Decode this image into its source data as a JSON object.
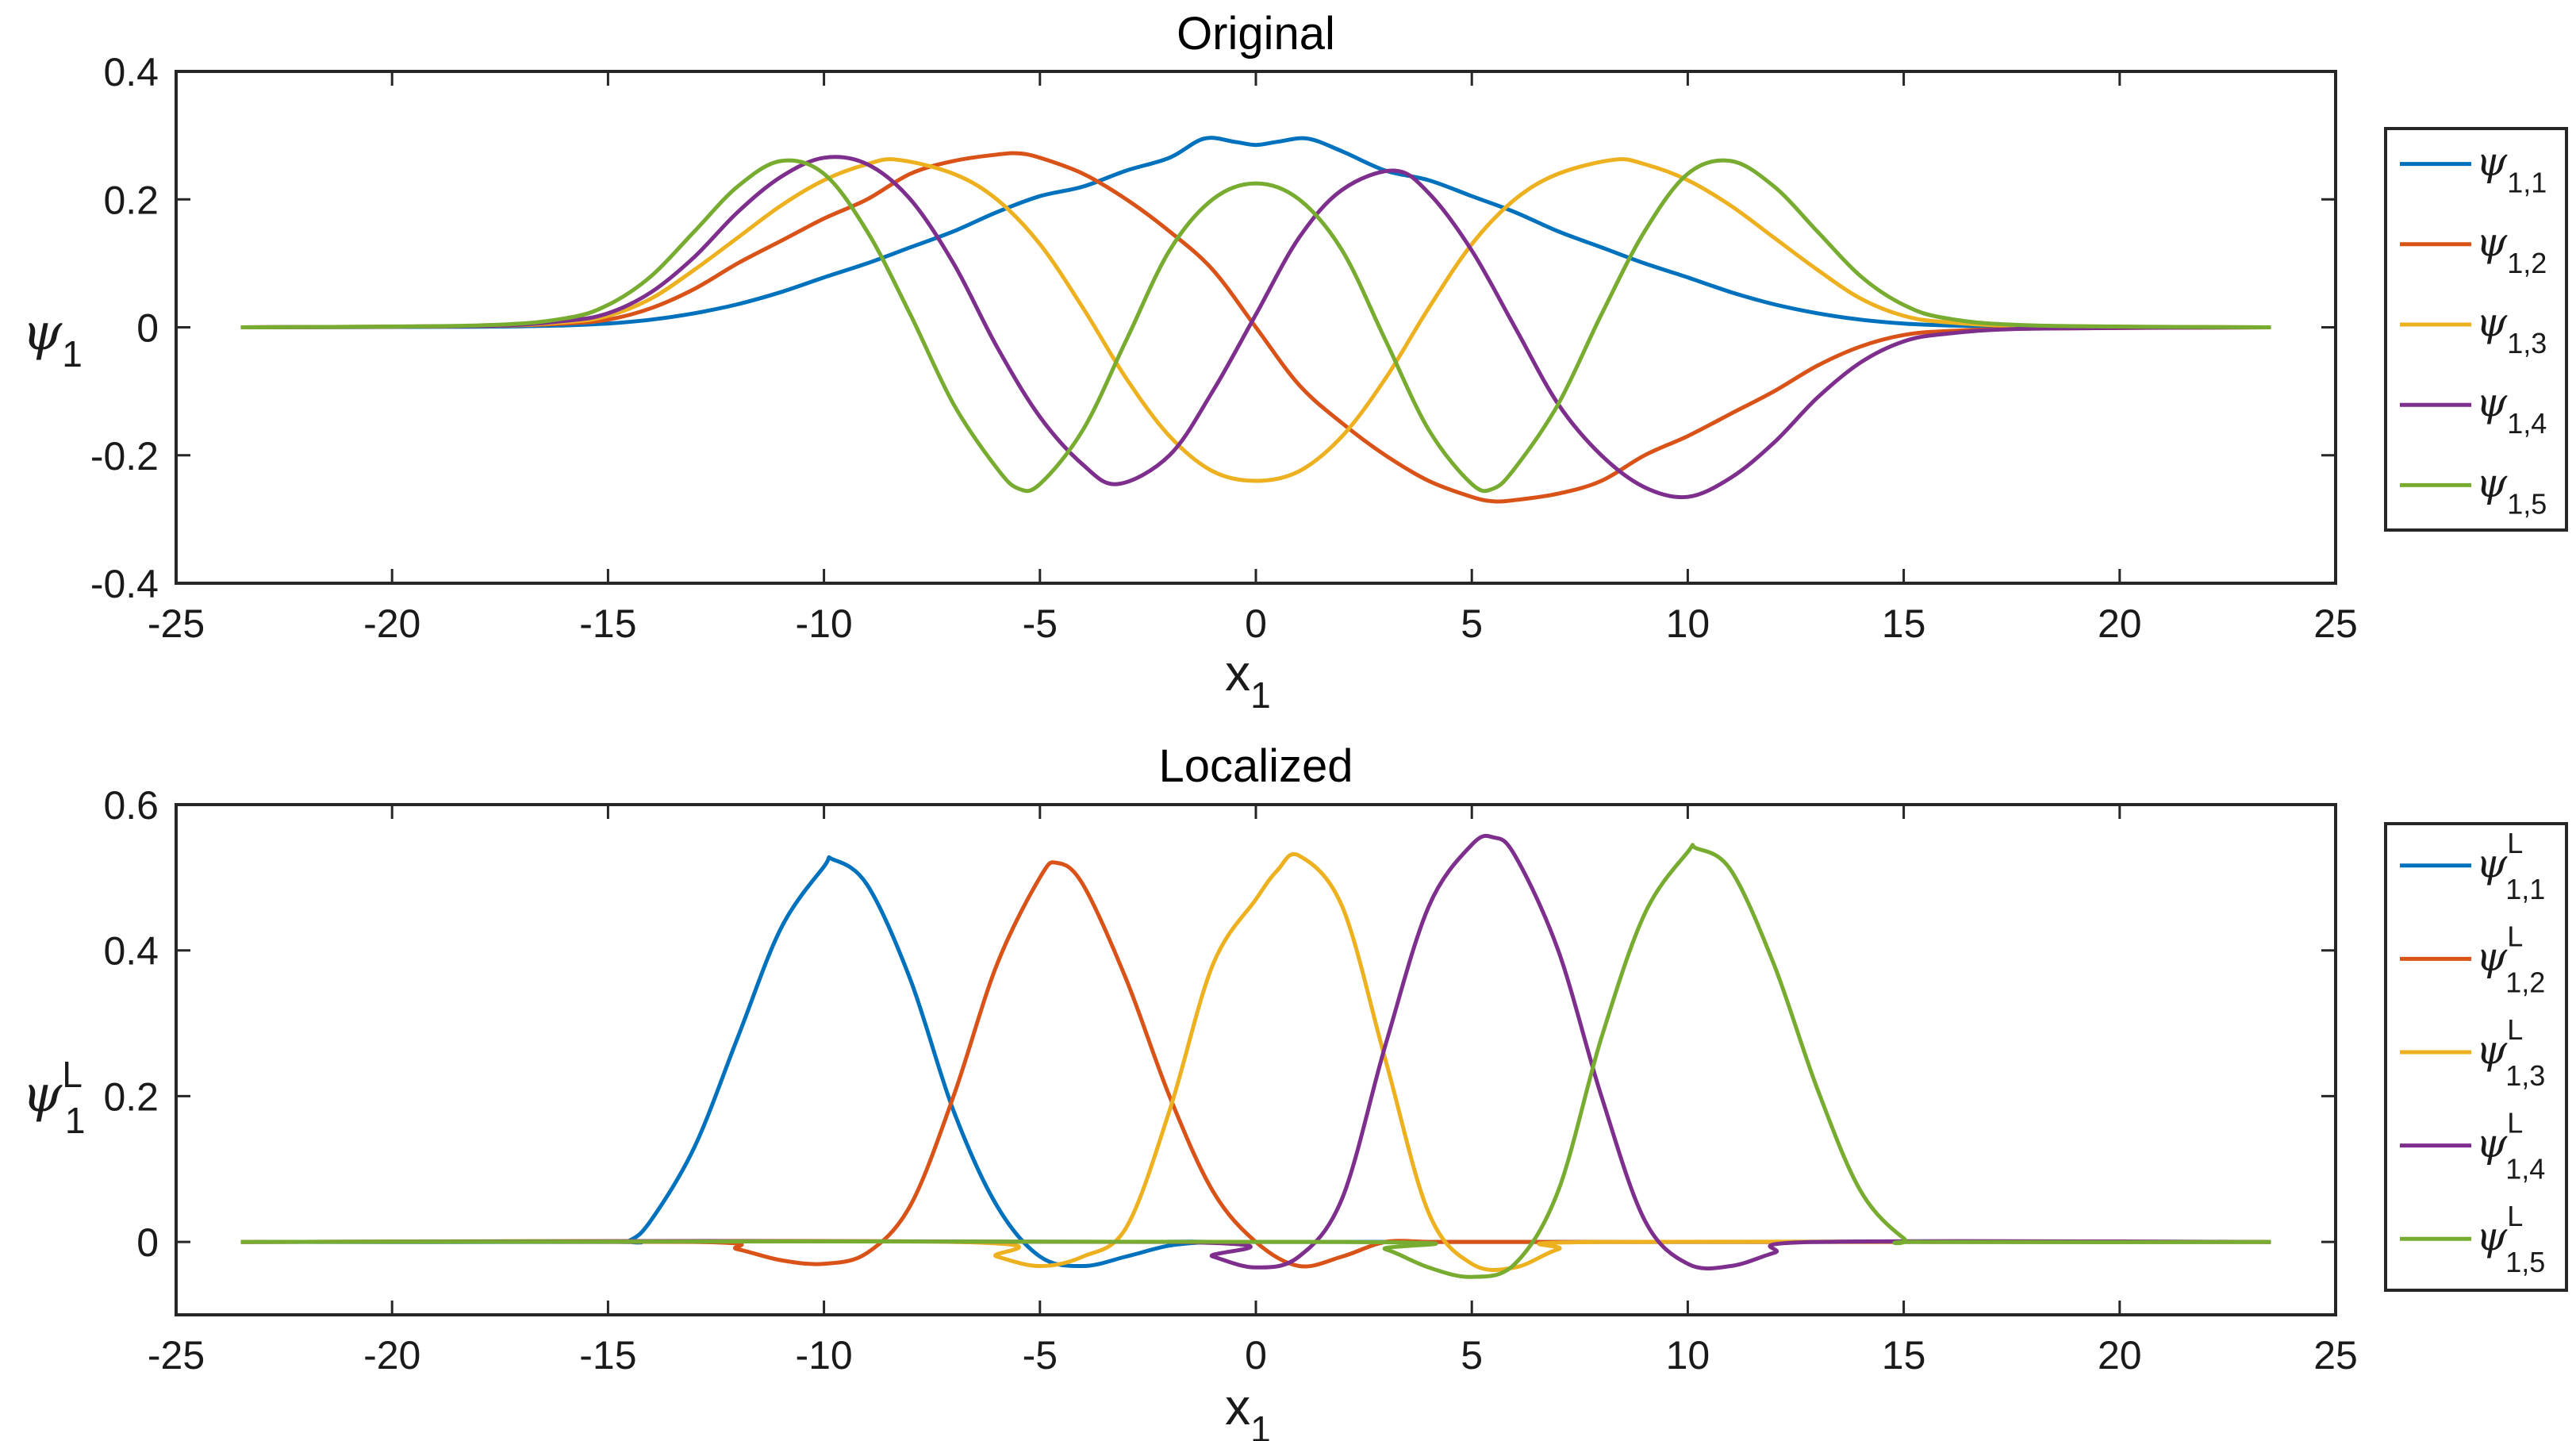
{
  "chart_data": [
    {
      "type": "line",
      "title": "Original",
      "xlabel": {
        "base": "x",
        "sub": "1"
      },
      "ylabel": {
        "base": "ψ",
        "sub": "1",
        "sup": ""
      },
      "xlim": [
        -25,
        25
      ],
      "ylim": [
        -0.4,
        0.4
      ],
      "xticks": [
        "-25",
        "-20",
        "-15",
        "-10",
        "-5",
        "0",
        "5",
        "10",
        "15",
        "20",
        "25"
      ],
      "yticks": [
        "-0.4",
        "-0.2",
        "0",
        "0.2",
        "0.4"
      ],
      "legend_position": "outside-right",
      "series": [
        {
          "name": "ψ",
          "sub": "1,1",
          "sup": "",
          "color": "#0072BD",
          "x": [
            -23.5,
            -18,
            -16,
            -15,
            -14,
            -13,
            -12,
            -11,
            -10,
            -9,
            -8,
            -7,
            -6,
            -5,
            -4,
            -3,
            -2,
            -1.2,
            -0.5,
            0,
            0.5,
            1.2,
            2,
            3,
            4,
            5,
            6,
            7,
            8,
            9,
            10,
            11,
            12,
            13,
            14,
            15,
            16,
            18,
            23.5
          ],
          "y": [
            0,
            0.001,
            0.003,
            0.006,
            0.012,
            0.022,
            0.036,
            0.055,
            0.078,
            0.1,
            0.125,
            0.15,
            0.18,
            0.205,
            0.22,
            0.245,
            0.265,
            0.295,
            0.29,
            0.285,
            0.29,
            0.295,
            0.275,
            0.245,
            0.23,
            0.205,
            0.18,
            0.15,
            0.125,
            0.1,
            0.078,
            0.055,
            0.036,
            0.022,
            0.012,
            0.006,
            0.003,
            0.001,
            0
          ]
        },
        {
          "name": "ψ",
          "sub": "1,2",
          "sup": "",
          "color": "#D95319",
          "x": [
            -23.5,
            -18,
            -16,
            -15,
            -14,
            -13,
            -12,
            -11,
            -10,
            -9,
            -8,
            -7,
            -6,
            -5.5,
            -5,
            -4,
            -3,
            -2,
            -1,
            0,
            1,
            2,
            3,
            4,
            5,
            5.5,
            6,
            7,
            8,
            9,
            10,
            11,
            12,
            13,
            14,
            15,
            16,
            18,
            23.5
          ],
          "y": [
            0,
            0.002,
            0.006,
            0.012,
            0.03,
            0.06,
            0.1,
            0.135,
            0.17,
            0.2,
            0.24,
            0.26,
            0.27,
            0.272,
            0.265,
            0.24,
            0.2,
            0.15,
            0.09,
            0,
            -0.09,
            -0.15,
            -0.2,
            -0.24,
            -0.265,
            -0.272,
            -0.27,
            -0.26,
            -0.24,
            -0.2,
            -0.17,
            -0.135,
            -0.1,
            -0.06,
            -0.03,
            -0.012,
            -0.006,
            -0.002,
            0
          ]
        },
        {
          "name": "ψ",
          "sub": "1,3",
          "sup": "",
          "color": "#EDB120",
          "x": [
            -23.5,
            -18,
            -16,
            -15,
            -14,
            -13,
            -12,
            -11,
            -10,
            -9,
            -8.3,
            -7,
            -6,
            -5,
            -4,
            -3,
            -2,
            -1,
            0,
            1,
            2,
            3,
            4,
            5,
            6,
            7,
            8.3,
            9,
            10,
            11,
            12,
            13,
            14,
            15,
            16,
            18,
            23.5
          ],
          "y": [
            0,
            0.002,
            0.008,
            0.018,
            0.045,
            0.09,
            0.14,
            0.19,
            0.23,
            0.255,
            0.262,
            0.24,
            0.2,
            0.13,
            0.03,
            -0.08,
            -0.17,
            -0.225,
            -0.24,
            -0.225,
            -0.17,
            -0.08,
            0.03,
            0.13,
            0.2,
            0.24,
            0.262,
            0.255,
            0.23,
            0.19,
            0.14,
            0.09,
            0.045,
            0.018,
            0.008,
            0.002,
            0
          ]
        },
        {
          "name": "ψ",
          "sub": "1,4",
          "sup": "",
          "color": "#7E2F8E",
          "x": [
            -23.5,
            -18,
            -16,
            -15,
            -14,
            -13,
            -12,
            -11,
            -10,
            -9,
            -8,
            -7,
            -6,
            -5,
            -4,
            -3.2,
            -2,
            -1,
            0,
            1,
            2,
            3.2,
            4,
            5,
            6,
            7,
            8,
            9,
            10,
            11,
            12,
            13,
            14,
            15,
            16,
            18,
            23.5
          ],
          "y": [
            0,
            0.002,
            0.01,
            0.022,
            0.055,
            0.11,
            0.18,
            0.235,
            0.265,
            0.255,
            0.2,
            0.1,
            -0.03,
            -0.14,
            -0.215,
            -0.245,
            -0.2,
            -0.1,
            0.02,
            0.14,
            0.215,
            0.245,
            0.21,
            0.12,
            0,
            -0.12,
            -0.2,
            -0.25,
            -0.265,
            -0.235,
            -0.18,
            -0.11,
            -0.055,
            -0.022,
            -0.01,
            -0.002,
            0
          ]
        },
        {
          "name": "ψ",
          "sub": "1,5",
          "sup": "",
          "color": "#77AC30",
          "x": [
            -23.5,
            -18,
            -16,
            -15,
            -14,
            -13,
            -12,
            -11,
            -10,
            -9,
            -8,
            -7,
            -6,
            -5.5,
            -5,
            -4,
            -3,
            -2,
            -1,
            0,
            1,
            2,
            3,
            4,
            5,
            5.5,
            6,
            7,
            8,
            9,
            10,
            11,
            12,
            13,
            14,
            15,
            16,
            18,
            23.5
          ],
          "y": [
            0,
            0.003,
            0.014,
            0.035,
            0.08,
            0.15,
            0.22,
            0.26,
            0.24,
            0.15,
            0.02,
            -0.12,
            -0.22,
            -0.252,
            -0.245,
            -0.16,
            -0.02,
            0.12,
            0.2,
            0.225,
            0.2,
            0.12,
            -0.02,
            -0.16,
            -0.245,
            -0.252,
            -0.22,
            -0.12,
            0.02,
            0.15,
            0.24,
            0.26,
            0.22,
            0.15,
            0.08,
            0.035,
            0.014,
            0.003,
            0
          ]
        }
      ]
    },
    {
      "type": "line",
      "title": "Localized",
      "xlabel": {
        "base": "x",
        "sub": "1"
      },
      "ylabel": {
        "base": "ψ",
        "sub": "1",
        "sup": "L"
      },
      "xlim": [
        -25,
        25
      ],
      "ylim": [
        -0.1,
        0.6
      ],
      "xticks": [
        "-25",
        "-20",
        "-15",
        "-10",
        "-5",
        "0",
        "5",
        "10",
        "15",
        "20",
        "25"
      ],
      "yticks": [
        "0",
        "0.2",
        "0.4",
        "0.6"
      ],
      "legend_position": "outside-right",
      "series": [
        {
          "name": "ψ",
          "sub": "1,1",
          "sup": "L",
          "color": "#0072BD",
          "x": [
            -23.5,
            -15,
            -14.5,
            -14,
            -13,
            -12,
            -11,
            -10,
            -9.8,
            -9,
            -8,
            -7,
            -6,
            -5,
            -4,
            -3,
            -2,
            -1,
            0,
            23.5
          ],
          "y": [
            0,
            0,
            0.002,
            0.03,
            0.13,
            0.28,
            0.43,
            0.515,
            0.525,
            0.49,
            0.36,
            0.18,
            0.05,
            -0.02,
            -0.033,
            -0.02,
            -0.005,
            0,
            0,
            0
          ]
        },
        {
          "name": "ψ",
          "sub": "1,2",
          "sup": "L",
          "color": "#D95319",
          "x": [
            -23.5,
            -13,
            -12,
            -11,
            -10,
            -9,
            -8,
            -7,
            -6,
            -5,
            -4.6,
            -4,
            -3,
            -2,
            -1,
            0,
            1,
            2,
            3,
            4,
            5,
            6,
            23.5
          ],
          "y": [
            0,
            0,
            -0.01,
            -0.025,
            -0.03,
            -0.015,
            0.05,
            0.2,
            0.38,
            0.5,
            0.52,
            0.49,
            0.36,
            0.2,
            0.07,
            0,
            -0.033,
            -0.02,
            0,
            0,
            0,
            0,
            0
          ]
        },
        {
          "name": "ψ",
          "sub": "1,3",
          "sup": "L",
          "color": "#EDB120",
          "x": [
            -23.5,
            -7,
            -6,
            -5,
            -4,
            -3,
            -2,
            -1,
            0,
            0.5,
            1,
            2,
            3,
            4,
            5,
            6,
            7,
            8,
            23.5
          ],
          "y": [
            0,
            0,
            -0.02,
            -0.033,
            -0.02,
            0.02,
            0.18,
            0.38,
            0.47,
            0.51,
            0.53,
            0.46,
            0.25,
            0.04,
            -0.03,
            -0.035,
            -0.01,
            0,
            0
          ]
        },
        {
          "name": "ψ",
          "sub": "1,4",
          "sup": "L",
          "color": "#7E2F8E",
          "x": [
            -23.5,
            -2,
            -1,
            0,
            1,
            2,
            3,
            4,
            5,
            5.5,
            6,
            7,
            8,
            9,
            10,
            11,
            12,
            13,
            23.5
          ],
          "y": [
            0,
            0,
            -0.02,
            -0.035,
            -0.02,
            0.06,
            0.27,
            0.46,
            0.545,
            0.555,
            0.53,
            0.4,
            0.2,
            0.03,
            -0.03,
            -0.033,
            -0.015,
            0,
            0
          ]
        },
        {
          "name": "ψ",
          "sub": "1,5",
          "sup": "L",
          "color": "#77AC30",
          "x": [
            -23.5,
            2,
            3,
            4,
            5,
            6,
            7,
            8,
            9,
            10,
            10.2,
            11,
            12,
            13,
            14,
            15,
            15.5,
            23.5
          ],
          "y": [
            0,
            0,
            -0.01,
            -0.035,
            -0.048,
            -0.03,
            0.07,
            0.28,
            0.45,
            0.535,
            0.54,
            0.51,
            0.38,
            0.21,
            0.07,
            0.005,
            0,
            0
          ]
        }
      ]
    }
  ]
}
